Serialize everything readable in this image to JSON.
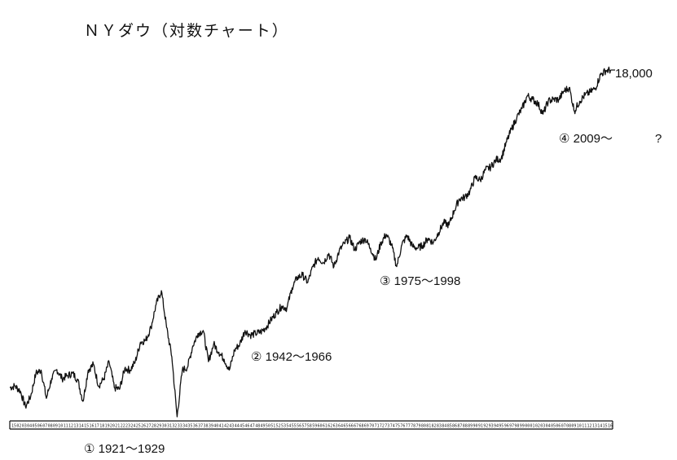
{
  "chart_data": {
    "type": "line",
    "title": "ＮＹダウ（対数チャート）",
    "xlabel": "",
    "ylabel": "",
    "log_scale": true,
    "grid": false,
    "legend": "none",
    "x_tick_labels": [
      "15",
      "02",
      "03",
      "04",
      "05",
      "06",
      "07",
      "08",
      "09",
      "10",
      "11",
      "12",
      "13",
      "14",
      "15",
      "16",
      "17",
      "18",
      "19",
      "20",
      "21",
      "22",
      "23",
      "24",
      "25",
      "26",
      "27",
      "28",
      "29",
      "30",
      "31",
      "32",
      "33",
      "34",
      "35",
      "36",
      "37",
      "38",
      "39",
      "40",
      "41",
      "42",
      "43",
      "44",
      "45",
      "46",
      "47",
      "48",
      "49",
      "50",
      "51",
      "52",
      "53",
      "54",
      "55",
      "56",
      "57",
      "58",
      "59",
      "60",
      "61",
      "62",
      "63",
      "64",
      "65",
      "66",
      "67",
      "68",
      "69",
      "70",
      "71",
      "72",
      "73",
      "74",
      "75",
      "76",
      "77",
      "78",
      "79",
      "80",
      "81",
      "82",
      "83",
      "84",
      "85",
      "86",
      "87",
      "88",
      "89",
      "90",
      "91",
      "92",
      "93",
      "94",
      "95",
      "96",
      "97",
      "98",
      "99",
      "00",
      "01",
      "02",
      "03",
      "04",
      "05",
      "06",
      "07",
      "08",
      "09",
      "10",
      "11",
      "12",
      "13",
      "14",
      "15",
      "16"
    ],
    "series": [
      {
        "values": [
          [
            1900,
            70
          ],
          [
            1901,
            72
          ],
          [
            1902,
            66
          ],
          [
            1903,
            50
          ],
          [
            1904,
            60
          ],
          [
            1905,
            90
          ],
          [
            1906,
            95
          ],
          [
            1907,
            58
          ],
          [
            1908,
            82
          ],
          [
            1909,
            96
          ],
          [
            1910,
            82
          ],
          [
            1911,
            86
          ],
          [
            1912,
            90
          ],
          [
            1913,
            80
          ],
          [
            1914,
            55
          ],
          [
            1915,
            95
          ],
          [
            1916,
            105
          ],
          [
            1917,
            72
          ],
          [
            1918,
            82
          ],
          [
            1919,
            110
          ],
          [
            1920,
            70
          ],
          [
            1921,
            68
          ],
          [
            1922,
            98
          ],
          [
            1923,
            95
          ],
          [
            1924,
            110
          ],
          [
            1925,
            155
          ],
          [
            1926,
            160
          ],
          [
            1927,
            200
          ],
          [
            1928,
            300
          ],
          [
            1929,
            381
          ],
          [
            1930,
            200
          ],
          [
            1931,
            120
          ],
          [
            1932,
            42
          ],
          [
            1933,
            95
          ],
          [
            1934,
            100
          ],
          [
            1935,
            145
          ],
          [
            1936,
            180
          ],
          [
            1937,
            190
          ],
          [
            1938,
            110
          ],
          [
            1939,
            150
          ],
          [
            1940,
            130
          ],
          [
            1941,
            115
          ],
          [
            1942,
            95
          ],
          [
            1943,
            135
          ],
          [
            1944,
            150
          ],
          [
            1945,
            190
          ],
          [
            1946,
            175
          ],
          [
            1947,
            180
          ],
          [
            1948,
            185
          ],
          [
            1949,
            200
          ],
          [
            1950,
            230
          ],
          [
            1951,
            260
          ],
          [
            1952,
            290
          ],
          [
            1953,
            280
          ],
          [
            1954,
            400
          ],
          [
            1955,
            480
          ],
          [
            1956,
            500
          ],
          [
            1957,
            440
          ],
          [
            1958,
            580
          ],
          [
            1959,
            680
          ],
          [
            1960,
            620
          ],
          [
            1961,
            730
          ],
          [
            1962,
            580
          ],
          [
            1963,
            760
          ],
          [
            1964,
            870
          ],
          [
            1965,
            960
          ],
          [
            1966,
            780
          ],
          [
            1967,
            900
          ],
          [
            1968,
            940
          ],
          [
            1969,
            800
          ],
          [
            1970,
            650
          ],
          [
            1971,
            880
          ],
          [
            1972,
            1020
          ],
          [
            1973,
            850
          ],
          [
            1974,
            580
          ],
          [
            1975,
            850
          ],
          [
            1976,
            1000
          ],
          [
            1977,
            830
          ],
          [
            1978,
            800
          ],
          [
            1979,
            840
          ],
          [
            1980,
            950
          ],
          [
            1981,
            880
          ],
          [
            1982,
            1050
          ],
          [
            1983,
            1250
          ],
          [
            1984,
            1200
          ],
          [
            1985,
            1540
          ],
          [
            1986,
            1900
          ],
          [
            1987,
            1940
          ],
          [
            1988,
            2160
          ],
          [
            1989,
            2750
          ],
          [
            1990,
            2630
          ],
          [
            1991,
            3150
          ],
          [
            1992,
            3300
          ],
          [
            1993,
            3750
          ],
          [
            1994,
            3830
          ],
          [
            1995,
            5100
          ],
          [
            1996,
            6450
          ],
          [
            1997,
            7900
          ],
          [
            1998,
            9180
          ],
          [
            1999,
            11500
          ],
          [
            2000,
            10780
          ],
          [
            2001,
            10020
          ],
          [
            2002,
            8340
          ],
          [
            2003,
            10450
          ],
          [
            2004,
            10780
          ],
          [
            2005,
            10720
          ],
          [
            2006,
            12460
          ],
          [
            2007,
            13260
          ],
          [
            2008,
            8780
          ],
          [
            2009,
            10430
          ],
          [
            2010,
            11580
          ],
          [
            2011,
            12220
          ],
          [
            2012,
            13100
          ],
          [
            2013,
            16580
          ],
          [
            2014,
            17820
          ],
          [
            2015,
            18000
          ]
        ]
      }
    ],
    "annotations": [
      {
        "id": "a1",
        "text": "① 1921～1929"
      },
      {
        "id": "a2",
        "text": "② 1942～1966"
      },
      {
        "id": "a3",
        "text": "③ 1975～1998"
      },
      {
        "id": "a4",
        "text": "④ 2009～"
      },
      {
        "id": "a5",
        "text": "?"
      },
      {
        "id": "a6",
        "text": "18,000"
      }
    ]
  }
}
